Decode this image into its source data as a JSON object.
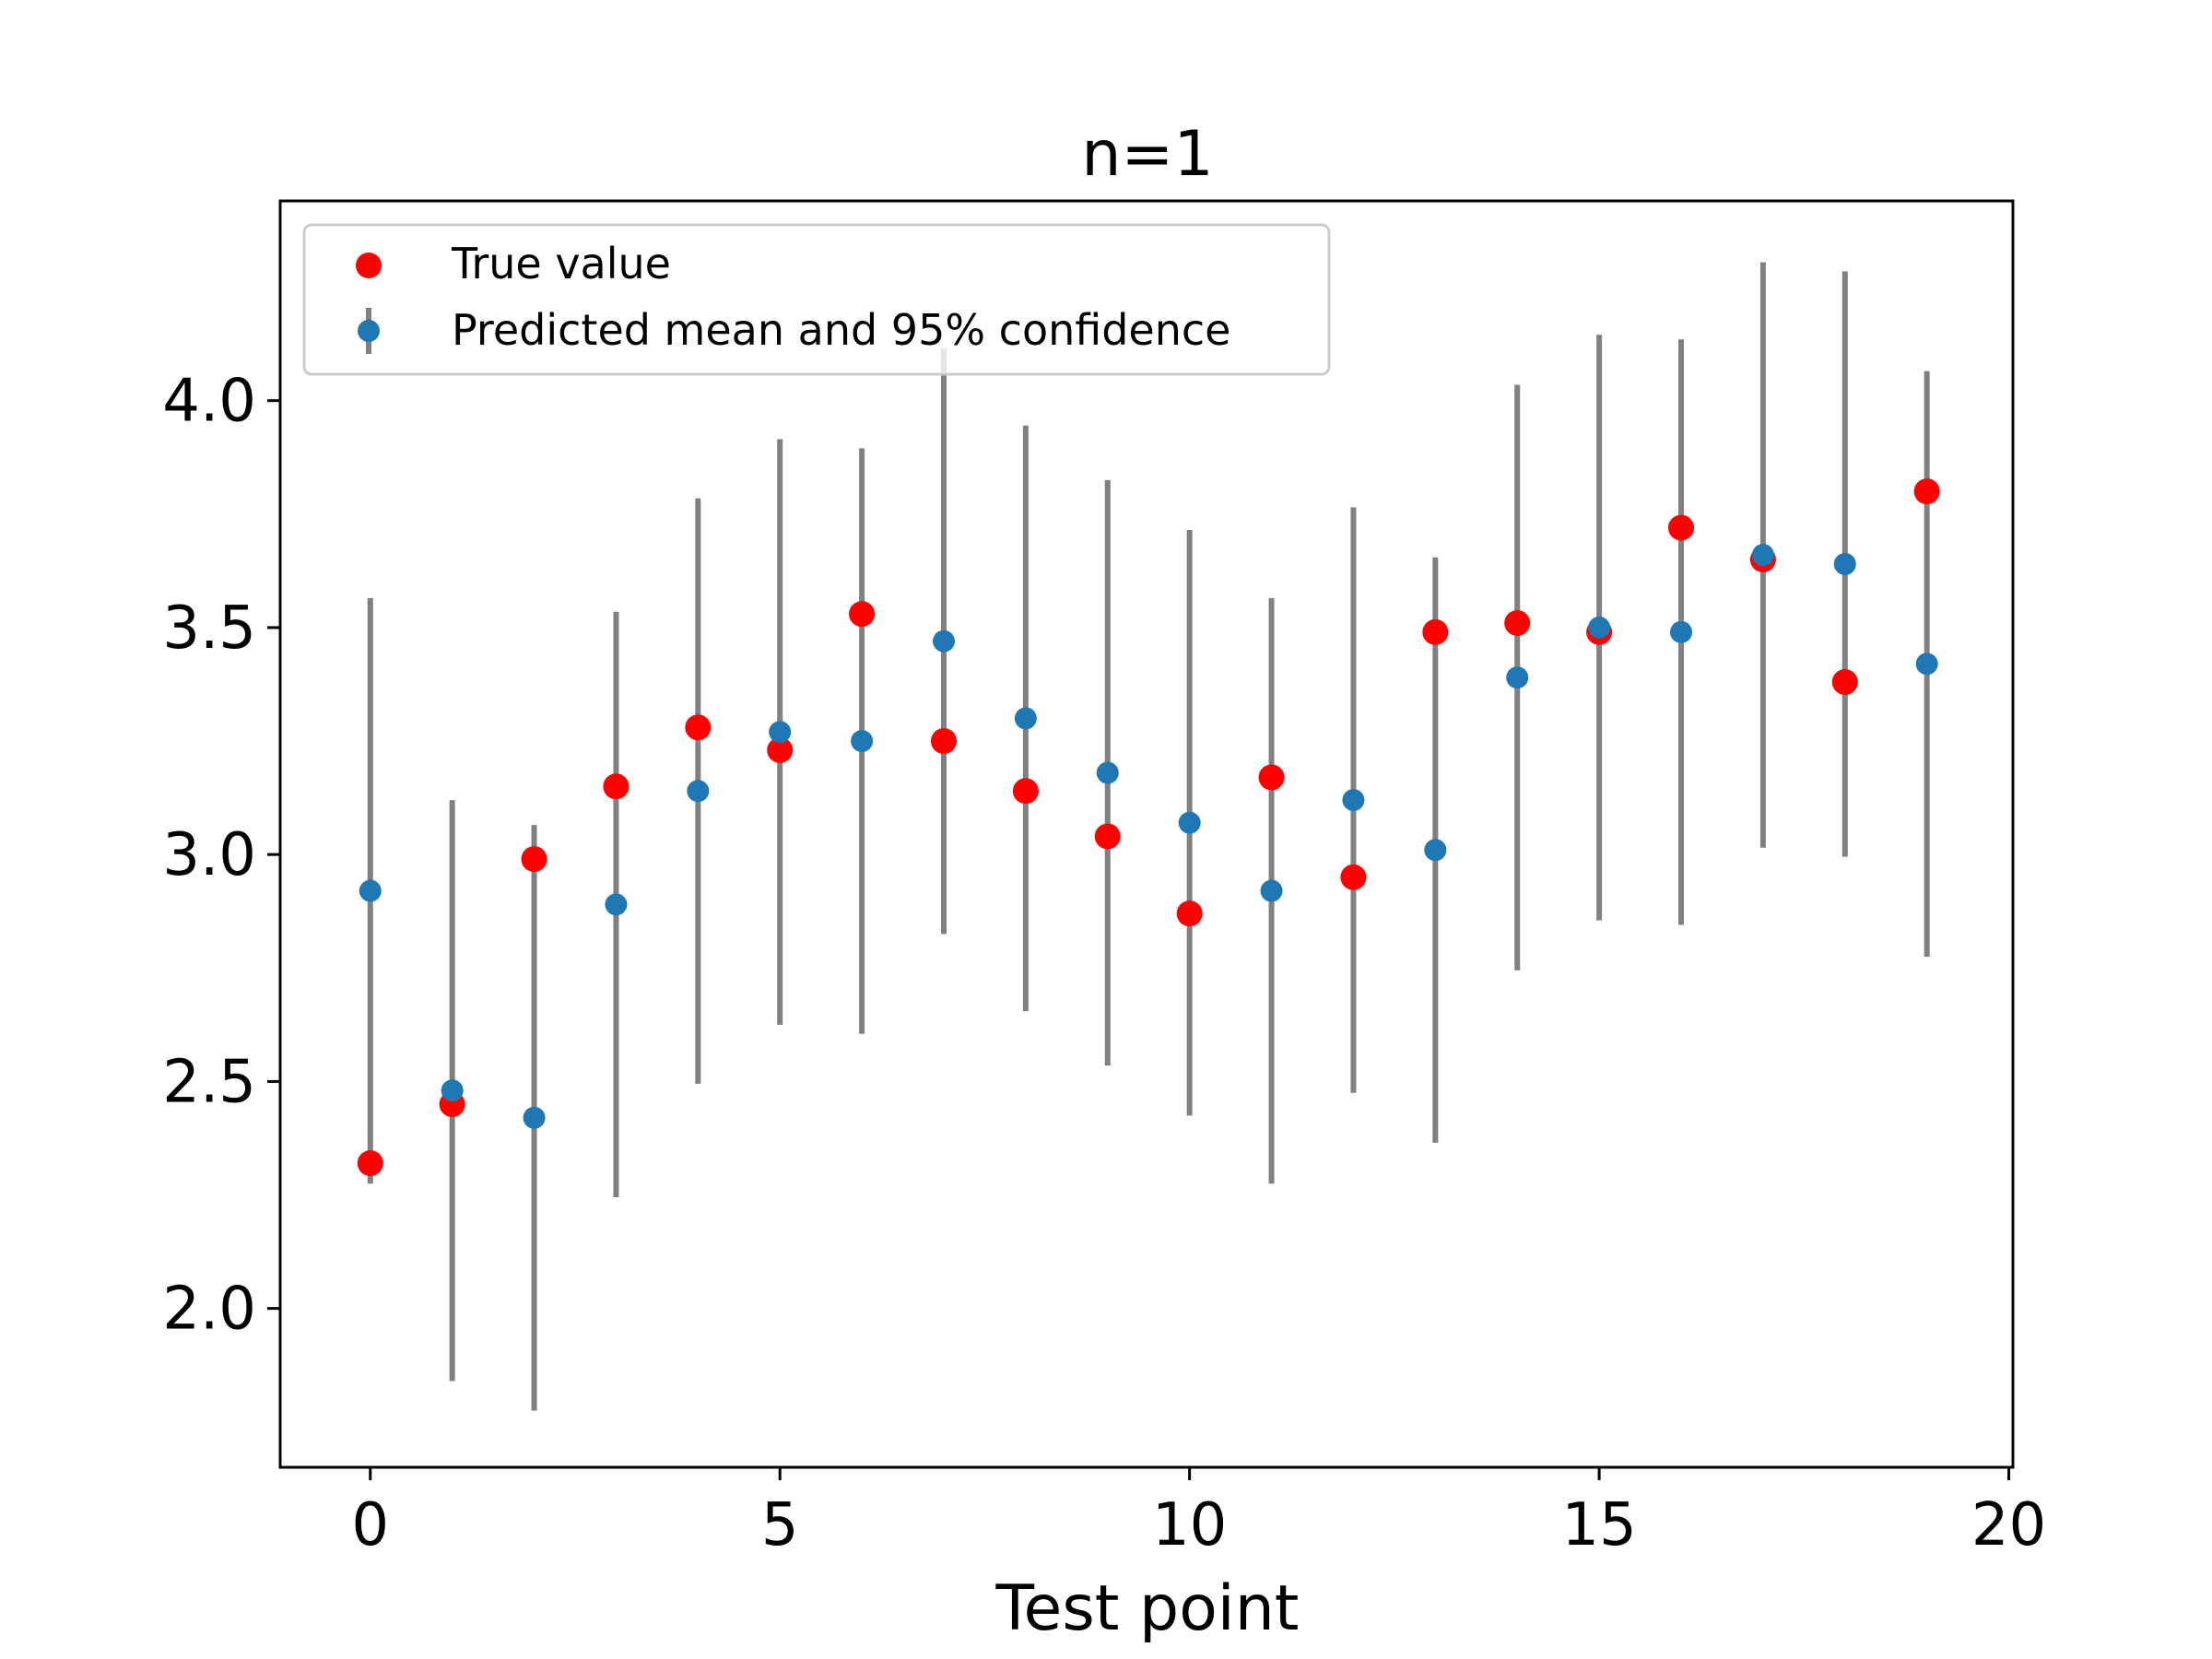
{
  "chart_data": {
    "type": "scatter",
    "title": "n=1",
    "xlabel": "Test point",
    "ylabel": "",
    "xlim": [
      -1.1,
      20.05
    ],
    "ylim": [
      1.65,
      4.44
    ],
    "xticks": [
      0,
      5,
      10,
      15,
      20
    ],
    "yticks": [
      2.0,
      2.5,
      3.0,
      3.5,
      4.0
    ],
    "xtick_labels": [
      "0",
      "5",
      "10",
      "15",
      "20"
    ],
    "ytick_labels": [
      "2.0",
      "2.5",
      "3.0",
      "3.5",
      "4.0"
    ],
    "grid": false,
    "legend_position": "upper-left",
    "x": [
      0,
      1,
      2,
      3,
      4,
      5,
      6,
      7,
      8,
      9,
      10,
      11,
      12,
      13,
      14,
      15,
      16,
      17,
      18,
      19
    ],
    "series": [
      {
        "name": "True value",
        "kind": "scatter",
        "color": "#ff0000",
        "values": [
          2.32,
          2.45,
          2.99,
          3.15,
          3.28,
          3.23,
          3.53,
          3.25,
          3.14,
          3.04,
          2.87,
          3.17,
          2.95,
          3.49,
          3.51,
          3.49,
          3.72,
          3.65,
          3.38,
          3.8
        ]
      },
      {
        "name": "Predicted mean and 95% confidence",
        "kind": "errorbar",
        "color": "#1f77b4",
        "error_color": "#808080",
        "values": [
          2.92,
          2.48,
          2.42,
          2.89,
          3.14,
          3.27,
          3.25,
          3.47,
          3.3,
          3.18,
          3.07,
          2.92,
          3.12,
          3.01,
          3.39,
          3.5,
          3.49,
          3.66,
          3.64,
          3.42
        ],
        "error": [
          0.645,
          0.64,
          0.645,
          0.645,
          0.645,
          0.645,
          0.645,
          0.645,
          0.645,
          0.645,
          0.645,
          0.645,
          0.645,
          0.645,
          0.645,
          0.645,
          0.645,
          0.645,
          0.645,
          0.645
        ]
      }
    ]
  }
}
